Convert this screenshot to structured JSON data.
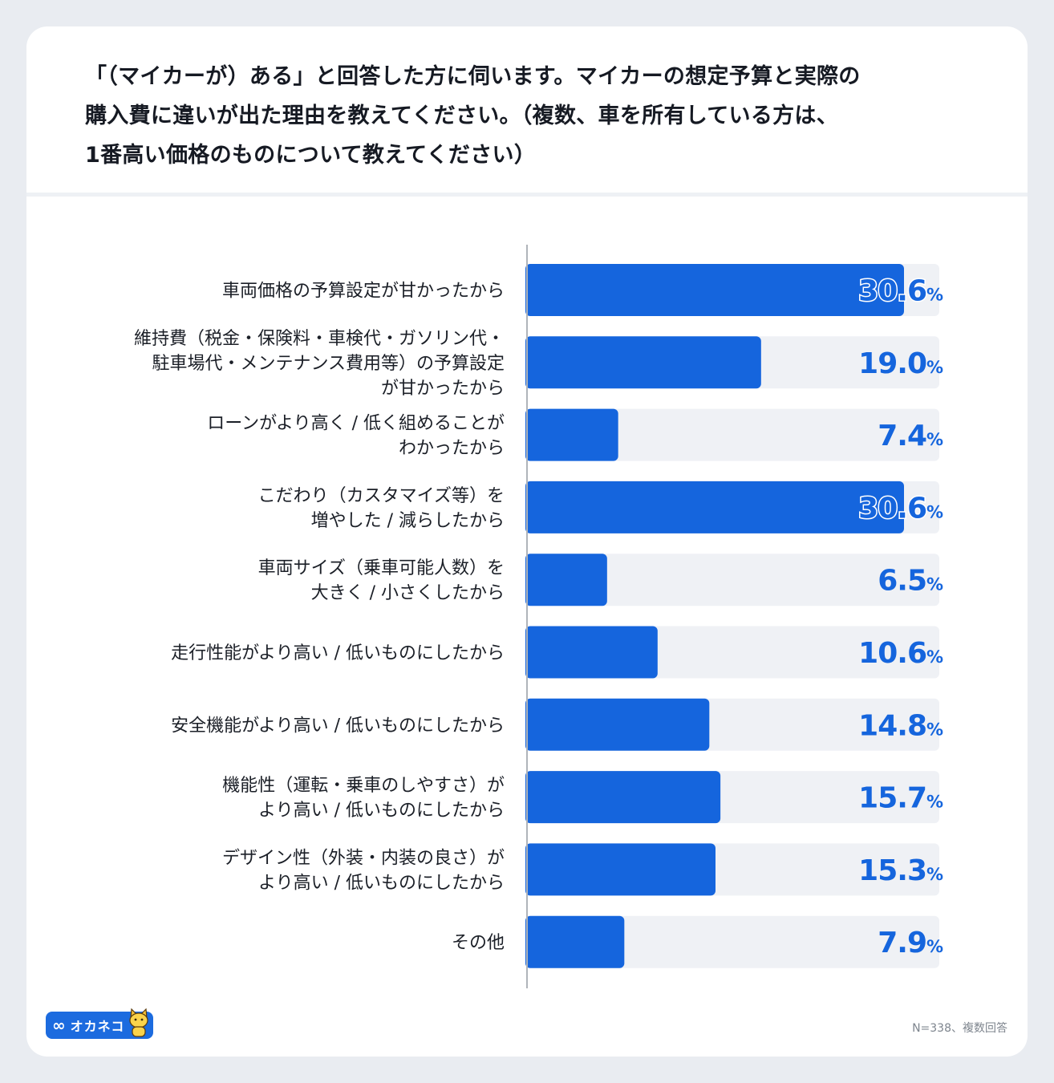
{
  "title_lines": [
    "「（マイカーが）ある」と回答した方に伺います。マイカーの想定予算と実際の",
    "購入費に違いが出た理由を教えてください。（複数、車を所有している方は、",
    "1番高い価格のものについて教えてください）"
  ],
  "logo": {
    "mark": "∞",
    "name": "オカネコ"
  },
  "note": "N=338、複数回答",
  "colors": {
    "bar": "#1565dd",
    "track": "#eff1f5",
    "value": "#1565dd",
    "axis": "#b0b4ba"
  },
  "chart_data": {
    "type": "bar",
    "orientation": "horizontal",
    "unit": "%",
    "xlim": [
      0,
      35
    ],
    "categories": [
      "車両価格の予算設定が甘かったから",
      "維持費（税金・保険料・車検代・ガソリン代・駐車場代・メンテナンス費用等）の予算設定が甘かったから",
      "ローンがより高く / 低く組めることがわかったから",
      "こだわり（カスタマイズ等）を増やした / 減らしたから",
      "車両サイズ（乗車可能人数）を大きく / 小さくしたから",
      "走行性能がより高い / 低いものにしたから",
      "安全機能がより高い / 低いものにしたから",
      "機能性（運転・乗車のしやすさ）がより高い / 低いものにしたから",
      "デザイン性（外装・内装の良さ）がより高い / 低いものにしたから",
      "その他"
    ],
    "category_lines": [
      [
        "車両価格の予算設定が甘かったから"
      ],
      [
        "維持費（税金・保険料・車検代・ガソリン代・",
        "駐車場代・メンテナンス費用等）の予算設定",
        "が甘かったから"
      ],
      [
        "ローンがより高く / 低く組めることが",
        "わかったから"
      ],
      [
        "こだわり（カスタマイズ等）を",
        "増やした / 減らしたから"
      ],
      [
        "車両サイズ（乗車可能人数）を",
        "大きく / 小さくしたから"
      ],
      [
        "走行性能がより高い / 低いものにしたから"
      ],
      [
        "安全機能がより高い / 低いものにしたから"
      ],
      [
        "機能性（運転・乗車のしやすさ）が",
        "より高い / 低いものにしたから"
      ],
      [
        "デザイン性（外装・内装の良さ）が",
        "より高い / 低いものにしたから"
      ],
      [
        "その他"
      ]
    ],
    "values": [
      30.6,
      19.0,
      7.4,
      30.6,
      6.5,
      10.6,
      14.8,
      15.7,
      15.3,
      7.9
    ],
    "value_labels": [
      "30.6",
      "19.0",
      "7.4",
      "30.6",
      "6.5",
      "10.6",
      "14.8",
      "15.7",
      "15.3",
      "7.9"
    ],
    "highlight": [
      true,
      false,
      false,
      true,
      false,
      false,
      false,
      false,
      false,
      false
    ]
  }
}
